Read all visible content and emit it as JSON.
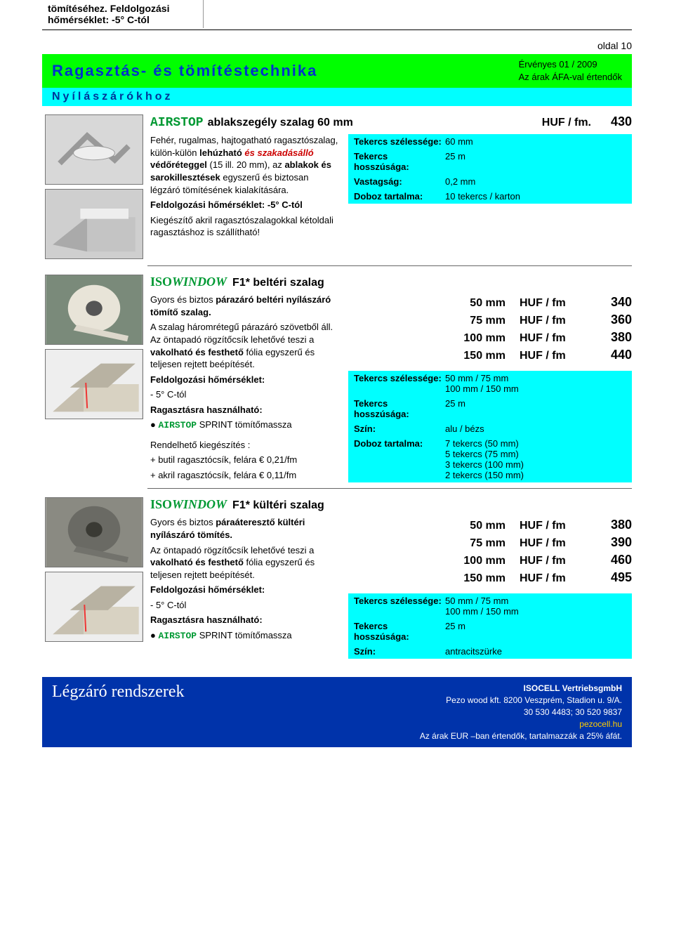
{
  "background_color": "#ffffff",
  "accent_green": "#00ff00",
  "accent_cyan": "#00ffff",
  "accent_blue": "#0033aa",
  "text_blue": "#003399",
  "brand_green": "#009933",
  "top_fragment": "tömítéséhez. Feldolgozási hőmérséklet: -5° C-tól",
  "page_number_label": "oldal 10",
  "header": {
    "title": "Ragasztás- és tömítéstechnika",
    "valid_line": "Érvényes 01 / 2009",
    "vat_line": "Az árak ÁFA-val értendők"
  },
  "subheader": "Nyílászárókhoz",
  "product1": {
    "brand": "AIRSTOP",
    "name": "ablakszegély szalag  60 mm",
    "price_unit": "HUF / fm.",
    "price": "430",
    "desc_parts": {
      "p1a": "Fehér, rugalmas, hajtogatható ragasztószalag, külön-külön ",
      "p1b_bold": "lehúzható",
      "p1c_red": " és szakadásálló ",
      "p1d_bold": "védőréteggel ",
      "p1e": "(15 ill. 20 mm), az ",
      "p1f_bold": "ablakok és  sarokillesztések ",
      "p1g": "egyszerű és biztosan légzáró tömítésének kialakítására.",
      "p2_bold": "Feldolgozási hőmérséklet: -5° C-tól",
      "p3": "Kiegészítő akril ragasztószalagokkal kétoldali ragasztáshoz is szállítható!"
    },
    "specs": [
      {
        "label": "Tekercs szélessége:",
        "value": "60 mm"
      },
      {
        "label": "Tekercs hosszúsága:",
        "value": "25 m"
      },
      {
        "label": "Vastagság:",
        "value": "0,2 mm"
      },
      {
        "label": "Doboz tartalma:",
        "value": "10 tekercs / karton"
      }
    ]
  },
  "product2": {
    "brand": "ISO",
    "brand2": "WINDOW",
    "name": "  F1* beltéri szalag",
    "variants": [
      {
        "width": "50 mm",
        "unit": "HUF / fm",
        "price": "340"
      },
      {
        "width": "75 mm",
        "unit": "HUF / fm",
        "price": "360"
      },
      {
        "width": "100 mm",
        "unit": "HUF / fm",
        "price": "380"
      },
      {
        "width": "150 mm",
        "unit": "HUF / fm",
        "price": "440"
      }
    ],
    "desc_parts": {
      "p1a": "Gyors és biztos ",
      "p1b_bold": "párazáró beltéri nyílászáró tömítő szalag.",
      "p2a": "A szalag háromrétegű párazáró szövetből áll. Az öntapadó rögzítőcsík lehetővé teszi  a ",
      "p2b_bold": "vakolható és festhető",
      "p2c": " fólia egyszerű és teljesen rejtett beépítését.",
      "p3_bold": "Feldolgozási hőmérséklet:",
      "p3v": " - 5° C-tól",
      "p4_bold": "Ragasztásra használható:",
      "p4v_brand": "AIRSTOP",
      "p4v_rest": " SPRINT tömítőmassza",
      "p5": "Rendelhető kiegészítés :",
      "p5a": "+ butil ragasztócsík, felára € 0,21/fm",
      "p5b": "+ akril ragasztócsík, felára € 0,11/fm"
    },
    "specs": [
      {
        "label": "Tekercs szélessége:",
        "value": "50 mm / 75 mm\n100 mm / 150 mm"
      },
      {
        "label": "Tekercs hosszúsága:",
        "value": "25 m"
      },
      {
        "label": "Szín:",
        "value": "alu / bézs"
      },
      {
        "label": "Doboz tartalma:",
        "value": "7 tekercs (50 mm)\n5 tekercs (75 mm)\n3 tekercs (100 mm)\n2 tekercs (150 mm)"
      }
    ]
  },
  "product3": {
    "brand": "ISO",
    "brand2": "WINDOW",
    "name": " F1* kültéri szalag",
    "variants": [
      {
        "width": "50 mm",
        "unit": "HUF / fm",
        "price": "380"
      },
      {
        "width": "75 mm",
        "unit": "HUF / fm",
        "price": "390"
      },
      {
        "width": "100 mm",
        "unit": "HUF / fm",
        "price": "460"
      },
      {
        "width": "150 mm",
        "unit": "HUF / fm",
        "price": "495"
      }
    ],
    "desc_parts": {
      "p1a": "Gyors és biztos ",
      "p1b_bold": "páraáteresztő kültéri nyílászáró tömítés.",
      "p2a": "Az öntapadó rögzítőcsík lehetővé teszi a ",
      "p2b_bold": "vakolható és festhető",
      "p2c": " fólia egyszerű és teljesen rejtett beépítését.",
      "p3_bold": "Feldolgozási hőmérséklet:",
      "p3v": " - 5° C-tól",
      "p4_bold": "Ragasztásra használható:",
      "p4v_brand": "AIRSTOP",
      "p4v_rest": " SPRINT tömítőmassza"
    },
    "specs": [
      {
        "label": "Tekercs szélessége:",
        "value": "50 mm / 75 mm\n100 mm / 150 mm"
      },
      {
        "label": "Tekercs hosszúsága:",
        "value": "25 m"
      },
      {
        "label": "Szín:",
        "value": "antracitszürke"
      }
    ]
  },
  "footer": {
    "title": "Légzáró rendszerek",
    "line1": "ISOCELL VertriebsgmbH",
    "line2": "Pezo wood kft.  8200 Veszprém, Stadion u. 9/A.",
    "line3": "30 530 4483; 30 520 9837",
    "link": "pezocell.hu",
    "line4": "Az árak EUR –ban értendők, tartalmazzák a 25% áfát."
  }
}
